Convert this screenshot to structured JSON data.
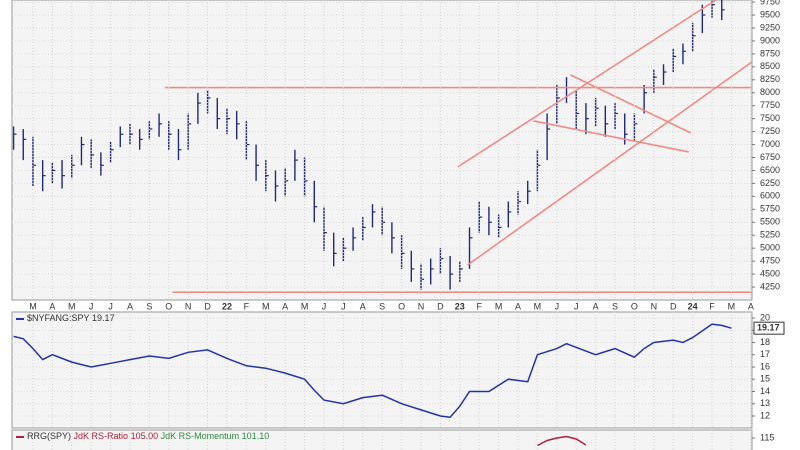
{
  "chart_data": [
    {
      "type": "ohlc",
      "color": "#1f2a7a",
      "grid": true,
      "xlim": [
        -1.08,
        37.06
      ],
      "ylim": [
        4000,
        9790
      ],
      "xticks": [
        {
          "value": 0,
          "label": "M"
        },
        {
          "value": 1,
          "label": "A"
        },
        {
          "value": 2,
          "label": "M"
        },
        {
          "value": 3,
          "label": "J"
        },
        {
          "value": 4,
          "label": "J"
        },
        {
          "value": 5,
          "label": "A"
        },
        {
          "value": 6,
          "label": "S"
        },
        {
          "value": 7,
          "label": "O"
        },
        {
          "value": 8,
          "label": "N"
        },
        {
          "value": 9,
          "label": "D"
        },
        {
          "value": 10,
          "label": "22"
        },
        {
          "value": 11,
          "label": "F"
        },
        {
          "value": 12,
          "label": "M"
        },
        {
          "value": 13,
          "label": "A"
        },
        {
          "value": 14,
          "label": "M"
        },
        {
          "value": 15,
          "label": "J"
        },
        {
          "value": 16,
          "label": "J"
        },
        {
          "value": 17,
          "label": "A"
        },
        {
          "value": 18,
          "label": "S"
        },
        {
          "value": 19,
          "label": "O"
        },
        {
          "value": 20,
          "label": "N"
        },
        {
          "value": 21,
          "label": "D"
        },
        {
          "value": 22,
          "label": "23"
        },
        {
          "value": 23,
          "label": "F"
        },
        {
          "value": 24,
          "label": "M"
        },
        {
          "value": 25,
          "label": "A"
        },
        {
          "value": 26,
          "label": "M"
        },
        {
          "value": 27,
          "label": "J"
        },
        {
          "value": 28,
          "label": "J"
        },
        {
          "value": 29,
          "label": "A"
        },
        {
          "value": 30,
          "label": "S"
        },
        {
          "value": 31,
          "label": "O"
        },
        {
          "value": 32,
          "label": "N"
        },
        {
          "value": 33,
          "label": "D"
        },
        {
          "value": 34,
          "label": "24"
        },
        {
          "value": 35,
          "label": "F"
        },
        {
          "value": 36,
          "label": "M"
        },
        {
          "value": 37,
          "label": "A"
        }
      ],
      "yticks": [
        4250,
        4500,
        4750,
        5000,
        5250,
        5500,
        5750,
        6000,
        6250,
        6500,
        6750,
        7000,
        7250,
        7500,
        7750,
        8000,
        8250,
        8500,
        8750,
        9000,
        9250,
        9500,
        9750
      ],
      "x": [
        -1,
        -0.5,
        0,
        0.5,
        1,
        1.5,
        2,
        2.5,
        3,
        3.5,
        4,
        4.5,
        5,
        5.5,
        6,
        6.5,
        7,
        7.5,
        8,
        8.5,
        9,
        9.5,
        10,
        10.5,
        11,
        11.5,
        12,
        12.5,
        13,
        13.5,
        14,
        14.5,
        15,
        15.5,
        16,
        16.5,
        17,
        17.5,
        18,
        18.5,
        19,
        19.5,
        20,
        20.5,
        21,
        21.5,
        22,
        22.5,
        23,
        23.5,
        24,
        24.5,
        25,
        25.5,
        26,
        26.5,
        27,
        27.5,
        28,
        28.5,
        29,
        29.5,
        30,
        30.5,
        31,
        31.5,
        32,
        32.5,
        33,
        33.5,
        34,
        34.5,
        35,
        35.5
      ],
      "high": [
        7350,
        7300,
        7150,
        6700,
        6650,
        6700,
        6800,
        7150,
        7100,
        6850,
        7050,
        7350,
        7400,
        7300,
        7450,
        7600,
        7450,
        7300,
        7600,
        8000,
        8050,
        7900,
        7700,
        7650,
        7450,
        7000,
        6700,
        6500,
        6550,
        6900,
        6750,
        6300,
        5800,
        5300,
        5200,
        5400,
        5600,
        5850,
        5800,
        5500,
        5250,
        4950,
        4700,
        4800,
        5000,
        4850,
        4750,
        5400,
        5900,
        5800,
        5650,
        5900,
        6100,
        6300,
        6900,
        7600,
        8150,
        8300,
        8050,
        7800,
        7900,
        7750,
        7800,
        7600,
        7600,
        8150,
        8450,
        8550,
        8850,
        8950,
        9350,
        9700,
        9850,
        9800
      ],
      "low": [
        6900,
        6700,
        6200,
        6100,
        6250,
        6150,
        6350,
        6600,
        6550,
        6400,
        6650,
        6950,
        7000,
        6900,
        7100,
        7150,
        6900,
        6700,
        6900,
        7400,
        7600,
        7300,
        7200,
        7100,
        6700,
        6300,
        6100,
        5900,
        6000,
        6300,
        6000,
        5500,
        4950,
        4650,
        4750,
        4950,
        5150,
        5400,
        5250,
        4900,
        4600,
        4350,
        4200,
        4300,
        4500,
        4200,
        4350,
        4600,
        5300,
        5250,
        5200,
        5400,
        5650,
        5850,
        6100,
        6700,
        7400,
        7800,
        7300,
        7200,
        7350,
        7150,
        7300,
        7000,
        7050,
        7600,
        8000,
        8150,
        8400,
        8550,
        8800,
        9150,
        9450,
        9400
      ],
      "close": [
        7200,
        7100,
        6600,
        6400,
        6500,
        6400,
        6600,
        7000,
        6800,
        6600,
        6900,
        7200,
        7200,
        7100,
        7300,
        7400,
        7200,
        6900,
        7400,
        7800,
        7900,
        7500,
        7500,
        7400,
        7000,
        6600,
        6400,
        6200,
        6300,
        6700,
        6300,
        5800,
        5300,
        4900,
        5000,
        5200,
        5400,
        5700,
        5500,
        5200,
        4900,
        4600,
        4400,
        4600,
        4800,
        4500,
        4600,
        5200,
        5600,
        5500,
        5400,
        5700,
        5900,
        6100,
        6600,
        7300,
        7900,
        8100,
        7600,
        7500,
        7700,
        7400,
        7600,
        7200,
        7400,
        8000,
        8300,
        8400,
        8700,
        8800,
        9100,
        9500,
        9700,
        9600
      ],
      "trendline_color": "#f08a84",
      "trendlines": [
        {
          "x": [
            6.8,
            37.06
          ],
          "y": [
            8100,
            8100
          ]
        },
        {
          "x": [
            7.2,
            37.06
          ],
          "y": [
            4150,
            4150
          ]
        },
        {
          "x": [
            21.9,
            35.2
          ],
          "y": [
            6570,
            9790
          ]
        },
        {
          "x": [
            22.4,
            37.06
          ],
          "y": [
            4675,
            8595
          ]
        },
        {
          "x": [
            27.7,
            33.9
          ],
          "y": [
            8345,
            7225
          ]
        },
        {
          "x": [
            25.8,
            33.8
          ],
          "y": [
            7456,
            6857
          ]
        }
      ]
    },
    {
      "type": "line",
      "grid": true,
      "xlim": [
        -1.08,
        37.06
      ],
      "ylim": [
        11.02,
        20.49
      ],
      "yticks": [
        12,
        13,
        14,
        15,
        16,
        17,
        18,
        19,
        20
      ],
      "series": [
        {
          "name": "$NYFANG:SPY",
          "color": "#2233aa",
          "x": [
            -1,
            -0.5,
            0,
            0.5,
            1,
            2,
            3,
            4,
            5,
            6,
            7,
            8,
            9,
            10,
            11,
            12,
            13,
            14,
            14.5,
            15,
            16,
            17,
            18,
            19,
            20,
            21,
            21.5,
            22,
            22.5,
            23.5,
            24.5,
            25.5,
            26,
            27,
            27.5,
            28.5,
            29,
            30,
            31,
            31.5,
            32,
            33,
            33.5,
            34,
            35,
            35.5,
            36
          ],
          "values": [
            18.5,
            18.3,
            17.5,
            16.6,
            17.0,
            16.4,
            16.0,
            16.3,
            16.6,
            16.9,
            16.7,
            17.2,
            17.4,
            16.7,
            16.1,
            15.9,
            15.5,
            15.0,
            14.1,
            13.3,
            13.0,
            13.5,
            13.7,
            13.0,
            12.5,
            12.0,
            11.9,
            12.8,
            14.0,
            14.0,
            15.0,
            14.8,
            17.0,
            17.5,
            17.9,
            17.3,
            17.0,
            17.5,
            16.8,
            17.5,
            18.0,
            18.2,
            18.0,
            18.4,
            19.5,
            19.4,
            19.17
          ]
        }
      ]
    },
    {
      "type": "line",
      "title": "RRG(SPY)",
      "xlim": [
        -1.08,
        37.06
      ],
      "ylim": [
        112.6,
        116.6
      ],
      "yticks": [
        115
      ],
      "series": [
        {
          "name": "JdK RS-Ratio",
          "color": "#b0203a",
          "last": 105.0,
          "last_label": "105.00",
          "x": [
            26,
            26.5,
            27,
            27.5,
            28,
            28.5
          ],
          "values": [
            113.5,
            114.5,
            115.0,
            115.3,
            114.8,
            113.6
          ]
        },
        {
          "name": "JdK RS-Momentum",
          "color": "#2e8b3a",
          "last": 101.1,
          "last_label": "101.10"
        }
      ]
    }
  ]
}
